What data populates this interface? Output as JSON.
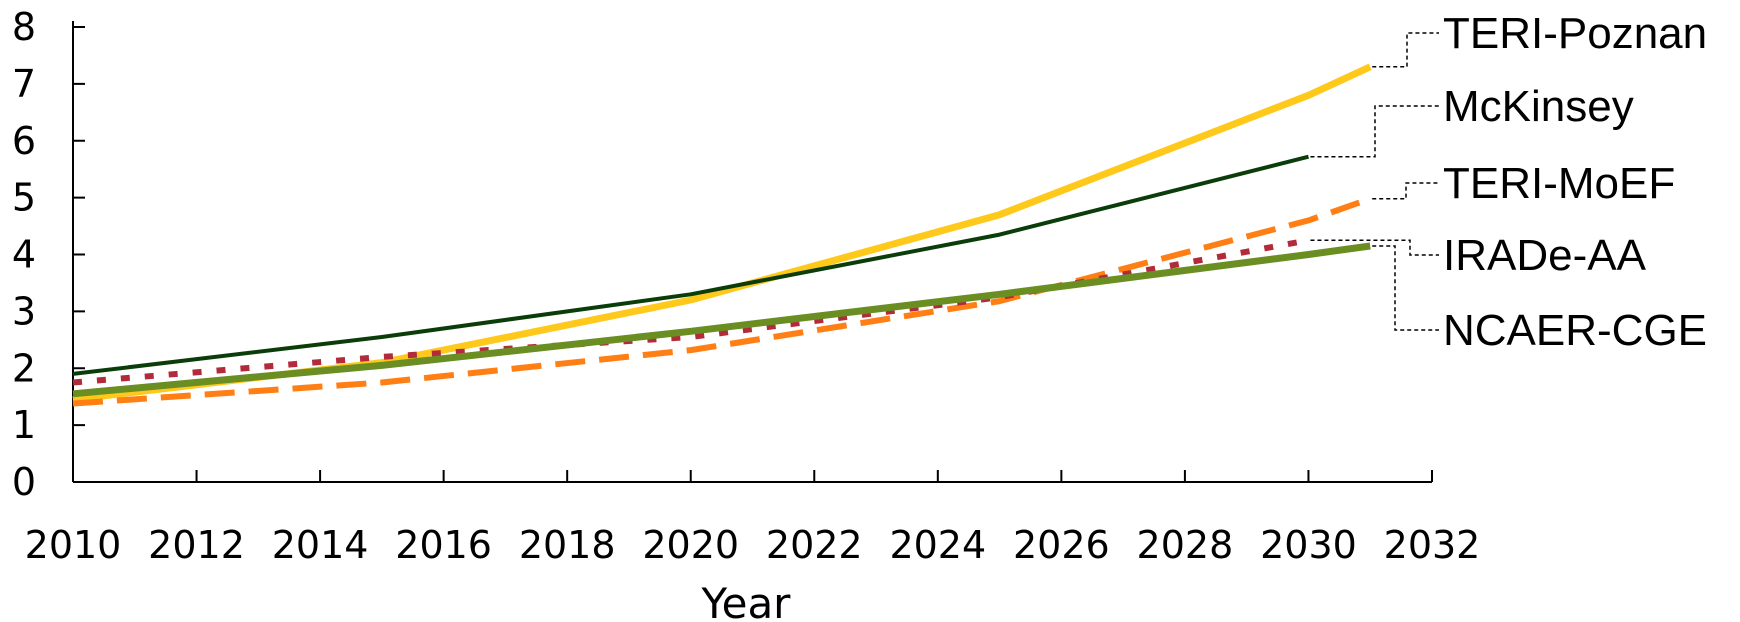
{
  "chart_data": {
    "type": "line",
    "title": "",
    "xlabel": "Year",
    "ylabel": "",
    "xlim": [
      2010,
      2032
    ],
    "ylim": [
      0,
      8
    ],
    "x_ticks": [
      2010,
      2012,
      2014,
      2016,
      2018,
      2020,
      2022,
      2024,
      2026,
      2028,
      2030,
      2032
    ],
    "y_ticks": [
      0,
      1,
      2,
      3,
      4,
      5,
      6,
      7,
      8
    ],
    "grid": false,
    "legend_placement": "right, labels connected to line ends",
    "series": [
      {
        "name": "TERI-Poznan",
        "color": "#FFC91B",
        "style": "solid-thick",
        "points": [
          [
            2010,
            1.45
          ],
          [
            2015,
            2.1
          ],
          [
            2020,
            3.2
          ],
          [
            2025,
            4.7
          ],
          [
            2030,
            6.8
          ],
          [
            2031,
            7.3
          ]
        ]
      },
      {
        "name": "McKinsey",
        "color": "#0B3D0B",
        "style": "solid-thin",
        "points": [
          [
            2010,
            1.9
          ],
          [
            2015,
            2.55
          ],
          [
            2020,
            3.3
          ],
          [
            2025,
            4.35
          ],
          [
            2030,
            5.72
          ]
        ]
      },
      {
        "name": "TERI-MoEF",
        "color": "#FF7F15",
        "style": "dashed",
        "points": [
          [
            2010,
            1.38
          ],
          [
            2015,
            1.75
          ],
          [
            2020,
            2.32
          ],
          [
            2025,
            3.18
          ],
          [
            2030,
            4.6
          ],
          [
            2031,
            4.98
          ]
        ]
      },
      {
        "name": "IRADe-AA",
        "color": "#B22B3A",
        "style": "dotted",
        "points": [
          [
            2010,
            1.75
          ],
          [
            2015,
            2.2
          ],
          [
            2020,
            2.55
          ],
          [
            2025,
            3.25
          ],
          [
            2030,
            4.25
          ]
        ]
      },
      {
        "name": "NCAER-CGE",
        "color": "#6B8E23",
        "style": "solid-thick",
        "points": [
          [
            2010,
            1.55
          ],
          [
            2015,
            2.05
          ],
          [
            2020,
            2.65
          ],
          [
            2025,
            3.3
          ],
          [
            2030,
            4.0
          ],
          [
            2031,
            4.15
          ]
        ]
      }
    ]
  }
}
